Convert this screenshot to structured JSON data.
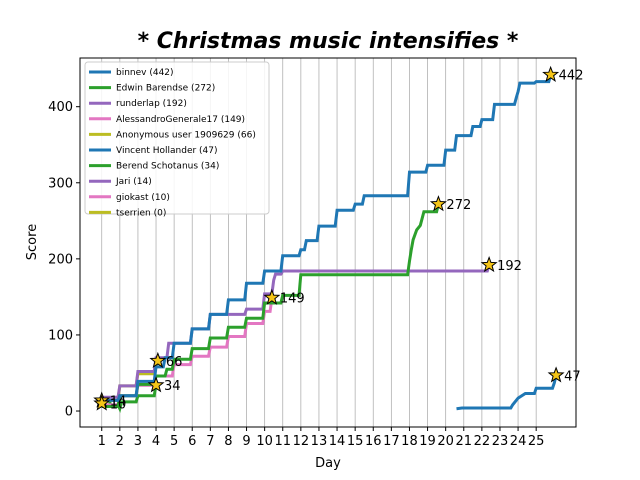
{
  "chart_data": {
    "type": "line",
    "title": "* Christmas music intensifies *",
    "xlabel": "Day",
    "ylabel": "Score",
    "xlim": [
      -0.2,
      27.2
    ],
    "ylim": [
      -21,
      464
    ],
    "x_ticks": [
      1,
      2,
      3,
      4,
      5,
      6,
      7,
      8,
      9,
      10,
      11,
      12,
      13,
      14,
      15,
      16,
      17,
      18,
      19,
      20,
      21,
      22,
      23,
      24,
      25
    ],
    "y_ticks": [
      0,
      100,
      200,
      300,
      400
    ],
    "grid": "vertical",
    "legend_position": "top-left",
    "series": [
      {
        "name": "binnev (442)",
        "color": "#1f77b4",
        "final": 442,
        "end_label": "442",
        "points": [
          [
            1,
            14
          ],
          [
            1.9,
            14
          ],
          [
            2,
            20
          ],
          [
            2.9,
            20
          ],
          [
            3,
            39
          ],
          [
            3.9,
            39
          ],
          [
            4,
            58
          ],
          [
            4.4,
            58
          ],
          [
            4.5,
            70
          ],
          [
            4.9,
            70
          ],
          [
            5,
            89
          ],
          [
            5.9,
            89
          ],
          [
            6,
            108
          ],
          [
            6.9,
            108
          ],
          [
            7,
            127
          ],
          [
            7.9,
            127
          ],
          [
            8,
            146
          ],
          [
            8.9,
            146
          ],
          [
            9,
            168
          ],
          [
            9.9,
            168
          ],
          [
            10,
            184
          ],
          [
            10.9,
            184
          ],
          [
            11,
            204
          ],
          [
            11.9,
            204
          ],
          [
            12,
            212
          ],
          [
            12.2,
            212
          ],
          [
            12.3,
            224
          ],
          [
            12.9,
            224
          ],
          [
            13,
            243
          ],
          [
            13.9,
            243
          ],
          [
            14,
            264
          ],
          [
            14.9,
            264
          ],
          [
            15,
            272
          ],
          [
            15.4,
            272
          ],
          [
            15.5,
            283
          ],
          [
            17.9,
            283
          ],
          [
            18,
            314
          ],
          [
            18.9,
            314
          ],
          [
            19,
            323
          ],
          [
            19.9,
            323
          ],
          [
            20,
            343
          ],
          [
            20.5,
            343
          ],
          [
            20.6,
            362
          ],
          [
            21.4,
            362
          ],
          [
            21.5,
            374
          ],
          [
            21.9,
            374
          ],
          [
            22,
            383
          ],
          [
            22.6,
            383
          ],
          [
            22.7,
            403
          ],
          [
            23.8,
            403
          ],
          [
            23.9,
            412
          ],
          [
            24,
            420
          ],
          [
            24.1,
            431
          ],
          [
            24.9,
            431
          ],
          [
            25,
            433
          ],
          [
            25.7,
            433
          ],
          [
            25.8,
            442
          ]
        ]
      },
      {
        "name": "Edwin Barendse (272)",
        "color": "#2ca02c",
        "final": 272,
        "end_label": "272",
        "points": [
          [
            1,
            6
          ],
          [
            1.9,
            6
          ],
          [
            2,
            20
          ],
          [
            2.9,
            20
          ],
          [
            3,
            35
          ],
          [
            3.9,
            35
          ],
          [
            4,
            46
          ],
          [
            4.5,
            46
          ],
          [
            4.6,
            55
          ],
          [
            4.9,
            55
          ],
          [
            5,
            68
          ],
          [
            5.9,
            68
          ],
          [
            6,
            82
          ],
          [
            6.9,
            82
          ],
          [
            7,
            96
          ],
          [
            7.9,
            96
          ],
          [
            8,
            110
          ],
          [
            8.9,
            110
          ],
          [
            9,
            122
          ],
          [
            9.9,
            122
          ],
          [
            10,
            142
          ],
          [
            10.9,
            142
          ],
          [
            11,
            152
          ],
          [
            11.9,
            152
          ],
          [
            12,
            179
          ],
          [
            17.9,
            179
          ],
          [
            18,
            197
          ],
          [
            18.1,
            212
          ],
          [
            18.2,
            225
          ],
          [
            18.4,
            238
          ],
          [
            18.6,
            244
          ],
          [
            18.8,
            262
          ],
          [
            19.5,
            262
          ],
          [
            19.6,
            272
          ]
        ]
      },
      {
        "name": "runderlap (192)",
        "color": "#9467bd",
        "final": 192,
        "end_label": "192",
        "points": [
          [
            1,
            18
          ],
          [
            1.9,
            18
          ],
          [
            2,
            33
          ],
          [
            2.9,
            33
          ],
          [
            3,
            52
          ],
          [
            3.9,
            52
          ],
          [
            4,
            70
          ],
          [
            4.6,
            70
          ],
          [
            4.7,
            89
          ],
          [
            5.9,
            89
          ],
          [
            6,
            108
          ],
          [
            6.9,
            108
          ],
          [
            7,
            127
          ],
          [
            8.9,
            127
          ],
          [
            9,
            134
          ],
          [
            9.9,
            134
          ],
          [
            10,
            154
          ],
          [
            10.4,
            154
          ],
          [
            10.5,
            172
          ],
          [
            10.6,
            180
          ],
          [
            10.9,
            180
          ],
          [
            11,
            184
          ],
          [
            22.3,
            184
          ],
          [
            22.4,
            192
          ]
        ]
      },
      {
        "name": "AlessandroGenerale17 (149)",
        "color": "#e377c2",
        "final": 149,
        "end_label": "149",
        "points": [
          [
            1,
            8
          ],
          [
            1.9,
            8
          ],
          [
            2,
            20
          ],
          [
            2.9,
            20
          ],
          [
            3,
            34
          ],
          [
            3.9,
            34
          ],
          [
            4,
            46
          ],
          [
            4.9,
            46
          ],
          [
            5,
            61
          ],
          [
            5.9,
            61
          ],
          [
            6,
            72
          ],
          [
            6.9,
            72
          ],
          [
            7,
            84
          ],
          [
            7.9,
            84
          ],
          [
            8,
            98
          ],
          [
            8.9,
            98
          ],
          [
            9,
            115
          ],
          [
            9.9,
            115
          ],
          [
            10,
            131
          ],
          [
            10.3,
            131
          ],
          [
            10.4,
            149
          ]
        ]
      },
      {
        "name": "Anonymous user 1909629 (66)",
        "color": "#bcbd22",
        "final": 66,
        "end_label": "66",
        "points": [
          [
            1,
            14
          ],
          [
            1.9,
            14
          ],
          [
            2,
            33
          ],
          [
            2.9,
            33
          ],
          [
            3,
            49
          ],
          [
            3.9,
            49
          ],
          [
            4,
            58
          ],
          [
            4.1,
            66
          ]
        ]
      },
      {
        "name": "Vincent Hollander (47)",
        "color": "#1f77b4",
        "final": 47,
        "end_label": "47",
        "points": [
          [
            20.6,
            3
          ],
          [
            20.9,
            4
          ],
          [
            23.6,
            4
          ],
          [
            23.7,
            8
          ],
          [
            24,
            17
          ],
          [
            24.4,
            23
          ],
          [
            24.9,
            23
          ],
          [
            25,
            30
          ],
          [
            25.9,
            30
          ],
          [
            26,
            37
          ],
          [
            26.1,
            47
          ]
        ]
      },
      {
        "name": "Berend Schotanus (34)",
        "color": "#2ca02c",
        "final": 34,
        "end_label": "34",
        "points": [
          [
            1,
            14
          ],
          [
            1.4,
            14
          ],
          [
            1.5,
            8
          ],
          [
            1.9,
            8
          ],
          [
            2,
            3
          ],
          [
            2.1,
            12
          ],
          [
            2.9,
            12
          ],
          [
            3,
            20
          ],
          [
            3.9,
            20
          ],
          [
            4,
            34
          ]
        ]
      },
      {
        "name": "Jari (14)",
        "color": "#9467bd",
        "final": 14,
        "end_label": "14",
        "points": [
          [
            1,
            14
          ]
        ]
      },
      {
        "name": "giokast (10)",
        "color": "#e377c2",
        "final": 10,
        "end_label": "10",
        "points": [
          [
            1,
            10
          ]
        ]
      },
      {
        "name": "tserrien (0)",
        "color": "#bcbd22",
        "final": 0,
        "end_label": "",
        "points": []
      }
    ]
  }
}
